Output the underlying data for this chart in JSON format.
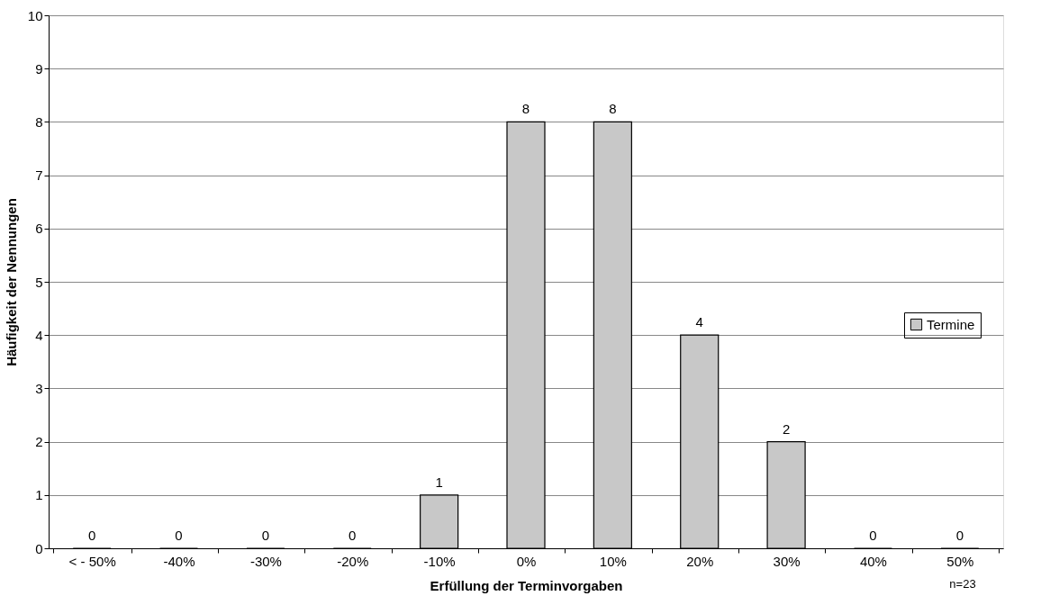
{
  "chart_data": {
    "type": "bar",
    "xlabel": "Erfüllung der Terminvorgaben",
    "ylabel": "Häufigkeit der Nennungen",
    "categories": [
      "< - 50%",
      "-40%",
      "-30%",
      "-20%",
      "-10%",
      "0%",
      "10%",
      "20%",
      "30%",
      "40%",
      "50%"
    ],
    "series": [
      {
        "name": "Termine",
        "color": "#c8c8c8",
        "values": [
          0,
          0,
          0,
          0,
          1,
          8,
          8,
          4,
          2,
          0,
          0
        ]
      }
    ],
    "ylim": [
      0,
      10
    ],
    "yticks": [
      0,
      1,
      2,
      3,
      4,
      5,
      6,
      7,
      8,
      9,
      10
    ],
    "grid": "y",
    "legend": "right",
    "data_labels": true,
    "annotations": [
      "n=23"
    ]
  }
}
